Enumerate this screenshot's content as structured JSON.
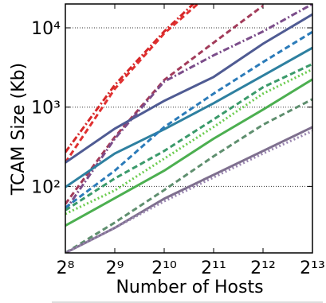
{
  "chart_data": {
    "type": "line",
    "xlabel": "Number of Hosts",
    "ylabel": "TCAM Size (Kb)",
    "xscale": "log2",
    "yscale": "log",
    "grid": true,
    "x": [
      256,
      512,
      1024,
      2048,
      4096,
      8192
    ],
    "xlim": [
      256,
      8192
    ],
    "xticks": [
      {
        "value": 256,
        "label": "2⁸"
      },
      {
        "value": 512,
        "label": "2⁹"
      },
      {
        "value": 1024,
        "label": "2¹⁰"
      },
      {
        "value": 2048,
        "label": "2¹¹"
      },
      {
        "value": 4096,
        "label": "2¹²"
      },
      {
        "value": 8192,
        "label": "2¹³"
      }
    ],
    "ylim": [
      14.5,
      20000
    ],
    "yticks": [
      {
        "value": 100,
        "label": "10²"
      },
      {
        "value": 1000,
        "label": "10³"
      },
      {
        "value": 10000,
        "label": "10⁴"
      }
    ],
    "series": [
      {
        "color": "#d62728",
        "dash": "dashdot",
        "values": [
          270,
          1900,
          9000,
          35000,
          null,
          null
        ]
      },
      {
        "color": "#e03030",
        "dash": "dashed",
        "values": [
          200,
          1700,
          8500,
          30000,
          null,
          null
        ]
      },
      {
        "color": "#a23b5a",
        "dash": "dashed",
        "values": [
          60,
          420,
          2200,
          6500,
          19000,
          null
        ]
      },
      {
        "color": "#7b4d8a",
        "dash": "dashdot",
        "values": [
          50,
          400,
          2100,
          4500,
          9000,
          20000
        ]
      },
      {
        "color": "#4f5b93",
        "dash": "solid",
        "values": [
          200,
          535,
          1200,
          2400,
          6300,
          14800
        ]
      },
      {
        "color": "#2e80a0",
        "dash": "solid",
        "values": [
          98,
          260,
          525,
          1120,
          2500,
          5600
        ]
      },
      {
        "color": "#2b7bb9",
        "dash": "dashed",
        "values": [
          54,
          158,
          560,
          1480,
          3700,
          8900
        ]
      },
      {
        "color": "#3a9a6a",
        "dash": "dashed",
        "values": [
          50,
          126,
          280,
          700,
          1780,
          3500
        ]
      },
      {
        "color": "#6ccc4f",
        "dash": "dotted",
        "values": [
          45,
          89,
          224,
          562,
          1480,
          3000
        ]
      },
      {
        "color": "#4caf50",
        "dash": "solid",
        "values": [
          32,
          71,
          158,
          400,
          930,
          2240
        ]
      },
      {
        "color": "#5f8f6f",
        "dash": "dashed",
        "values": [
          14.5,
          35,
          90,
          240,
          600,
          1260
        ]
      },
      {
        "color": "#7e6f8e",
        "dash": "solid",
        "values": [
          14.5,
          30,
          70,
          140,
          280,
          560
        ]
      },
      {
        "color": "#9a86b0",
        "dash": "dotted",
        "values": [
          14.5,
          30,
          65,
          130,
          260,
          500
        ]
      }
    ]
  }
}
